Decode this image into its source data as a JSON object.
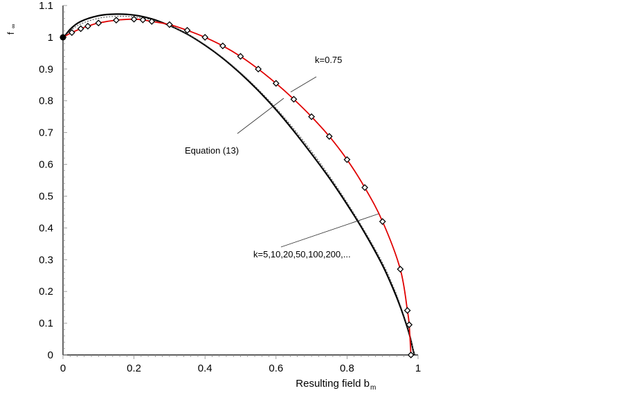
{
  "chart_data": {
    "type": "line",
    "title": "",
    "xlabel": "Resulting field b",
    "xlabel_sub": "m",
    "ylabel": "f",
    "ylabel_sub": "∞",
    "xlim": [
      0,
      1
    ],
    "ylim": [
      0,
      1.1
    ],
    "x_ticks": [
      "0",
      "0.2",
      "0.4",
      "0.6",
      "0.8",
      "1"
    ],
    "y_ticks": [
      "0",
      "0.1",
      "0.2",
      "0.3",
      "0.4",
      "0.5",
      "0.6",
      "0.7",
      "0.8",
      "0.9",
      "1",
      "1.1"
    ],
    "grid": false,
    "series": [
      {
        "style": "black-solid",
        "color": "#000000",
        "x": [
          0,
          0.02,
          0.05,
          0.1,
          0.15,
          0.2,
          0.25,
          0.3,
          0.35,
          0.4,
          0.45,
          0.5,
          0.55,
          0.6,
          0.65,
          0.7,
          0.75,
          0.8,
          0.85,
          0.9,
          0.93,
          0.95,
          0.97,
          0.98,
          0.985,
          0.99
        ],
        "y": [
          0.995,
          1.025,
          1.05,
          1.068,
          1.073,
          1.07,
          1.058,
          1.037,
          1.01,
          0.975,
          0.934,
          0.886,
          0.832,
          0.772,
          0.705,
          0.633,
          0.557,
          0.474,
          0.384,
          0.282,
          0.208,
          0.152,
          0.086,
          0.046,
          0.02,
          0.0
        ]
      },
      {
        "style": "dotted",
        "color": "#555555",
        "x": [
          0,
          0.02,
          0.05,
          0.1,
          0.15,
          0.2,
          0.25,
          0.3,
          0.35,
          0.4,
          0.45,
          0.5,
          0.55,
          0.6,
          0.65,
          0.7,
          0.75,
          0.8,
          0.85,
          0.9,
          0.93,
          0.95,
          0.97,
          0.98,
          0.985,
          0.99
        ],
        "y": [
          0.995,
          1.02,
          1.042,
          1.06,
          1.066,
          1.064,
          1.055,
          1.037,
          1.011,
          0.977,
          0.936,
          0.889,
          0.836,
          0.777,
          0.712,
          0.641,
          0.564,
          0.48,
          0.39,
          0.29,
          0.216,
          0.158,
          0.09,
          0.05,
          0.022,
          0.0
        ]
      },
      {
        "name": "k=0.75",
        "style": "red-markers",
        "color": "#e00000",
        "x": [
          0,
          0.025,
          0.05,
          0.07,
          0.1,
          0.15,
          0.2,
          0.225,
          0.25,
          0.3,
          0.35,
          0.4,
          0.45,
          0.5,
          0.55,
          0.6,
          0.65,
          0.7,
          0.75,
          0.8,
          0.85,
          0.9,
          0.95,
          0.97,
          0.975,
          0.98
        ],
        "y": [
          1.0,
          1.015,
          1.027,
          1.035,
          1.045,
          1.054,
          1.057,
          1.055,
          1.05,
          1.04,
          1.022,
          1.0,
          0.973,
          0.94,
          0.9,
          0.855,
          0.805,
          0.75,
          0.688,
          0.615,
          0.527,
          0.42,
          0.27,
          0.14,
          0.095,
          0.0
        ]
      }
    ],
    "annotations": [
      "k=0.75",
      "Equation (13)",
      "k=5,10,20,50,100,200,..."
    ]
  }
}
